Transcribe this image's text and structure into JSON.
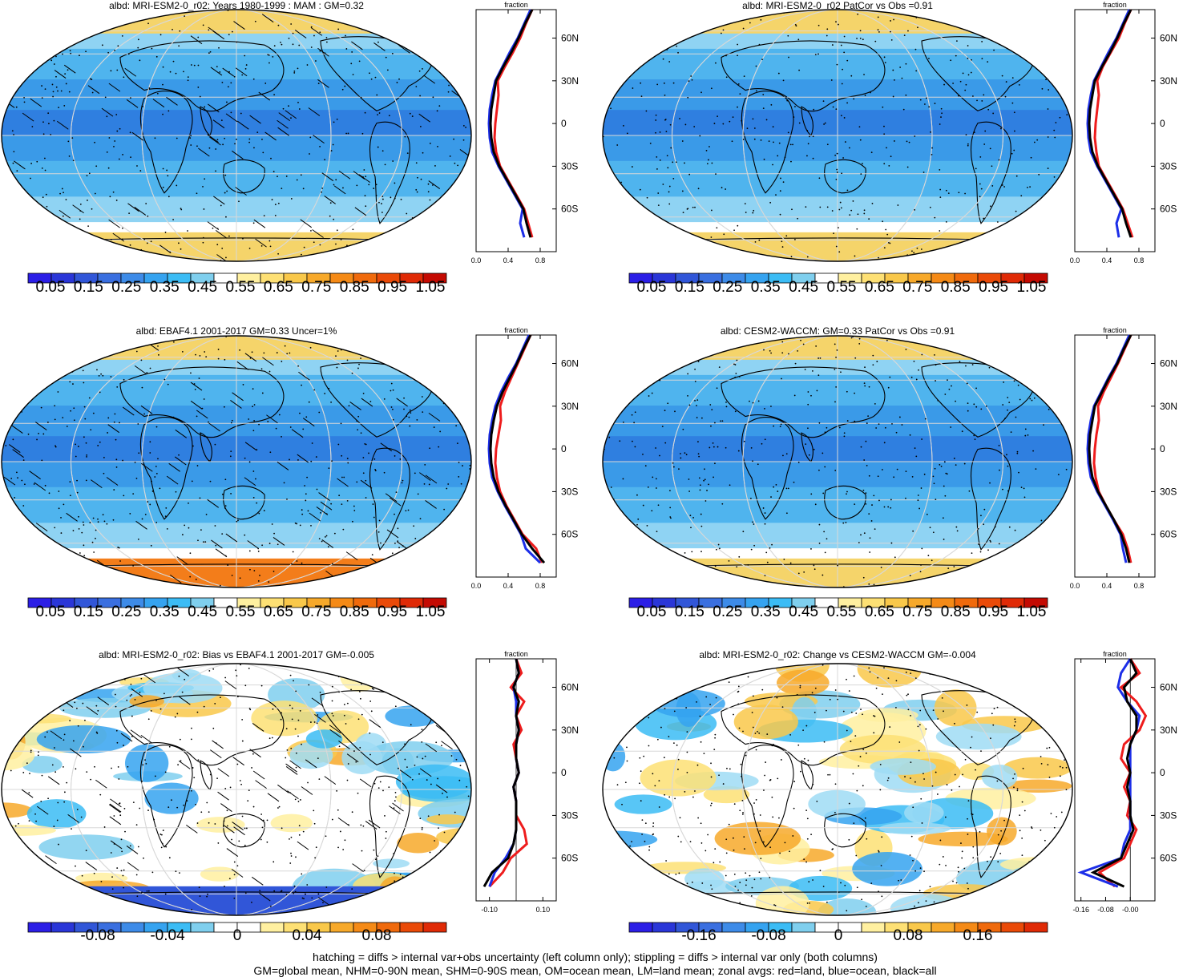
{
  "figure": {
    "footer_line1": "hatching = diffs > internal var+obs uncertainty (left column only); stippling = diffs > internal var only (both columns)",
    "footer_line2": "GM=global mean, NHM=0-90N mean, SHM=0-90S mean, OM=ocean mean, LM=land mean; zonal avgs: red=land, blue=ocean, black=all"
  },
  "chart_data": [
    {
      "type": "heatmap",
      "panel": "top-left",
      "title": "albd: MRI-ESM2-0_r02: Years 1980-1999 : MAM : GM=0.32",
      "colorbar_labels": [
        "0.05",
        "0.15",
        "0.25",
        "0.35",
        "0.45",
        "0.55",
        "0.65",
        "0.75",
        "0.85",
        "0.95",
        "1.05"
      ],
      "colorbar_colors": [
        "#2b1ee6",
        "#2a36d8",
        "#3156d8",
        "#3a6fe0",
        "#3d8be8",
        "#35a3f0",
        "#3bbcf5",
        "#7fcfee",
        "#ffffff",
        "#fff0a0",
        "#fde074",
        "#f9c84a",
        "#f7a92a",
        "#f58a16",
        "#f06a0c",
        "#ea4a08",
        "#e02a06",
        "#c40a02"
      ],
      "zonal": {
        "xlabel": "fraction",
        "xticks": [
          "0.0",
          "0.4",
          "0.8"
        ],
        "yticks": [
          "60N",
          "30N",
          "0",
          "30S",
          "60S"
        ],
        "lat": [
          80,
          70,
          60,
          50,
          40,
          30,
          20,
          10,
          0,
          -10,
          -20,
          -30,
          -40,
          -50,
          -60,
          -70,
          -80
        ],
        "land": [
          0.7,
          0.62,
          0.55,
          0.46,
          0.36,
          0.27,
          0.28,
          0.26,
          0.24,
          0.23,
          0.25,
          0.3,
          0.4,
          0.5,
          0.6,
          0.65,
          0.7
        ],
        "ocean": [
          0.68,
          0.6,
          0.52,
          0.42,
          0.33,
          0.24,
          0.2,
          0.17,
          0.16,
          0.17,
          0.2,
          0.28,
          0.38,
          0.48,
          0.58,
          0.55,
          0.6
        ],
        "all": [
          0.7,
          0.61,
          0.53,
          0.44,
          0.34,
          0.25,
          0.22,
          0.19,
          0.18,
          0.19,
          0.22,
          0.29,
          0.39,
          0.49,
          0.59,
          0.63,
          0.68
        ]
      }
    },
    {
      "type": "heatmap",
      "panel": "top-right",
      "title": "albd: MRI-ESM2-0_r02 PatCor vs Obs =0.91",
      "colorbar_labels": [
        "0.05",
        "0.15",
        "0.25",
        "0.35",
        "0.45",
        "0.55",
        "0.65",
        "0.75",
        "0.85",
        "0.95",
        "1.05"
      ],
      "zonal": {
        "xlabel": "fraction",
        "xticks": [
          "0.0",
          "0.4",
          "0.8"
        ],
        "yticks": [
          "60N",
          "30N",
          "0",
          "30S",
          "60S"
        ],
        "lat": [
          80,
          70,
          60,
          50,
          40,
          30,
          20,
          10,
          0,
          -10,
          -20,
          -30,
          -40,
          -50,
          -60,
          -70,
          -80
        ],
        "land": [
          0.7,
          0.62,
          0.55,
          0.45,
          0.35,
          0.28,
          0.3,
          0.28,
          0.26,
          0.25,
          0.27,
          0.3,
          0.4,
          0.5,
          0.6,
          0.66,
          0.72
        ],
        "ocean": [
          0.68,
          0.6,
          0.52,
          0.42,
          0.33,
          0.24,
          0.2,
          0.17,
          0.16,
          0.17,
          0.2,
          0.28,
          0.38,
          0.48,
          0.58,
          0.52,
          0.55
        ],
        "all": [
          0.7,
          0.61,
          0.53,
          0.44,
          0.34,
          0.25,
          0.22,
          0.19,
          0.18,
          0.19,
          0.22,
          0.29,
          0.39,
          0.49,
          0.59,
          0.64,
          0.7
        ]
      }
    },
    {
      "type": "heatmap",
      "panel": "middle-left",
      "title": "albd: EBAF4.1 2001-2017 GM=0.33 Uncer=1%",
      "colorbar_labels": [
        "0.05",
        "0.15",
        "0.25",
        "0.35",
        "0.45",
        "0.55",
        "0.65",
        "0.75",
        "0.85",
        "0.95",
        "1.05"
      ],
      "zonal": {
        "xlabel": "fraction",
        "xticks": [
          "0.0",
          "0.4",
          "0.8"
        ],
        "yticks": [
          "60N",
          "30N",
          "0",
          "30S",
          "60S"
        ],
        "lat": [
          80,
          70,
          60,
          50,
          40,
          30,
          20,
          10,
          0,
          -10,
          -20,
          -30,
          -40,
          -50,
          -60,
          -70,
          -80
        ],
        "land": [
          0.68,
          0.6,
          0.52,
          0.44,
          0.36,
          0.3,
          0.31,
          0.28,
          0.25,
          0.24,
          0.26,
          0.3,
          0.38,
          0.48,
          0.58,
          0.75,
          0.82
        ],
        "ocean": [
          0.66,
          0.58,
          0.5,
          0.4,
          0.31,
          0.24,
          0.2,
          0.17,
          0.16,
          0.17,
          0.2,
          0.27,
          0.36,
          0.46,
          0.56,
          0.62,
          0.8
        ],
        "all": [
          0.68,
          0.59,
          0.51,
          0.42,
          0.33,
          0.26,
          0.22,
          0.19,
          0.18,
          0.19,
          0.22,
          0.28,
          0.37,
          0.47,
          0.57,
          0.7,
          0.85
        ]
      }
    },
    {
      "type": "heatmap",
      "panel": "middle-right",
      "title": "albd: CESM2-WACCM: GM=0.33 PatCor vs Obs =0.91",
      "colorbar_labels": [
        "0.05",
        "0.15",
        "0.25",
        "0.35",
        "0.45",
        "0.55",
        "0.65",
        "0.75",
        "0.85",
        "0.95",
        "1.05"
      ],
      "zonal": {
        "xlabel": "fraction",
        "xticks": [
          "0.0",
          "0.4",
          "0.8"
        ],
        "yticks": [
          "60N",
          "30N",
          "0",
          "30S",
          "60S"
        ],
        "lat": [
          80,
          70,
          60,
          50,
          40,
          30,
          20,
          10,
          0,
          -10,
          -20,
          -30,
          -40,
          -50,
          -60,
          -70,
          -80
        ],
        "land": [
          0.7,
          0.62,
          0.54,
          0.45,
          0.36,
          0.29,
          0.3,
          0.27,
          0.25,
          0.24,
          0.26,
          0.3,
          0.39,
          0.49,
          0.6,
          0.66,
          0.7
        ],
        "ocean": [
          0.68,
          0.6,
          0.52,
          0.42,
          0.33,
          0.24,
          0.2,
          0.17,
          0.16,
          0.17,
          0.2,
          0.28,
          0.38,
          0.48,
          0.57,
          0.6,
          0.64
        ],
        "all": [
          0.7,
          0.61,
          0.53,
          0.43,
          0.34,
          0.25,
          0.22,
          0.19,
          0.18,
          0.19,
          0.22,
          0.29,
          0.39,
          0.49,
          0.58,
          0.64,
          0.68
        ]
      }
    },
    {
      "type": "heatmap",
      "panel": "bottom-left",
      "title": "albd: MRI-ESM2-0_r02: Bias vs EBAF4.1 2001-2017 GM=-0.005",
      "colorbar_labels": [
        "-0.08",
        "-0.04",
        "0",
        "0.04",
        "0.08"
      ],
      "colorbar_colors": [
        "#2b1ee6",
        "#2a36d8",
        "#3156d8",
        "#3a6fe0",
        "#3d8be8",
        "#35a3f0",
        "#3bbcf5",
        "#7fcfee",
        "#ffffff",
        "#ffffff",
        "#fff0a0",
        "#fde074",
        "#f9c84a",
        "#f7a92a",
        "#f58a16",
        "#f06a0c",
        "#ea4a08",
        "#e02a06"
      ],
      "zonal": {
        "xlabel": "fraction",
        "xticks": [
          "-0.10",
          "0.10"
        ],
        "yticks": [
          "60N",
          "30N",
          "0",
          "30S",
          "60S"
        ],
        "lat": [
          80,
          70,
          60,
          50,
          40,
          30,
          20,
          10,
          0,
          -10,
          -20,
          -30,
          -40,
          -50,
          -60,
          -70,
          -80
        ],
        "land": [
          0.0,
          0.02,
          -0.02,
          0.03,
          0.0,
          0.02,
          -0.01,
          0.0,
          0.01,
          -0.01,
          0.0,
          0.0,
          0.03,
          0.04,
          -0.02,
          -0.05,
          -0.1
        ],
        "ocean": [
          0.0,
          0.01,
          -0.01,
          0.0,
          0.0,
          0.01,
          0.0,
          0.0,
          0.01,
          -0.01,
          0.0,
          0.0,
          0.0,
          -0.01,
          -0.04,
          -0.08,
          -0.1
        ],
        "all": [
          0.0,
          0.01,
          -0.01,
          0.01,
          0.0,
          0.01,
          0.0,
          0.0,
          0.01,
          -0.01,
          0.0,
          0.0,
          0.0,
          -0.01,
          -0.03,
          -0.09,
          -0.12
        ]
      }
    },
    {
      "type": "heatmap",
      "panel": "bottom-right",
      "title": "albd: MRI-ESM2-0_r02: Change vs CESM2-WACCM GM=-0.004",
      "colorbar_labels": [
        "-0.16",
        "-0.08",
        "0",
        "0.08",
        "0.16"
      ],
      "zonal": {
        "xlabel": "fraction",
        "xticks": [
          "-0.16",
          "-0.08",
          "-0.00"
        ],
        "yticks": [
          "60N",
          "30N",
          "0",
          "30S",
          "60S"
        ],
        "lat": [
          80,
          70,
          60,
          50,
          40,
          30,
          20,
          10,
          0,
          -10,
          -20,
          -30,
          -40,
          -50,
          -60,
          -70,
          -80
        ],
        "land": [
          0.0,
          0.03,
          -0.03,
          0.02,
          0.05,
          0.03,
          -0.02,
          -0.03,
          0.0,
          -0.02,
          0.0,
          -0.01,
          0.02,
          0.0,
          -0.02,
          -0.1,
          -0.05
        ],
        "ocean": [
          0.0,
          -0.03,
          -0.04,
          -0.01,
          0.03,
          0.02,
          0.0,
          0.0,
          0.0,
          0.0,
          0.0,
          0.0,
          0.0,
          -0.02,
          -0.03,
          -0.16,
          -0.04
        ],
        "all": [
          0.0,
          0.02,
          -0.02,
          -0.01,
          0.02,
          0.02,
          0.0,
          -0.01,
          0.0,
          -0.01,
          0.0,
          0.0,
          0.01,
          -0.01,
          -0.03,
          -0.12,
          -0.02
        ]
      }
    }
  ]
}
